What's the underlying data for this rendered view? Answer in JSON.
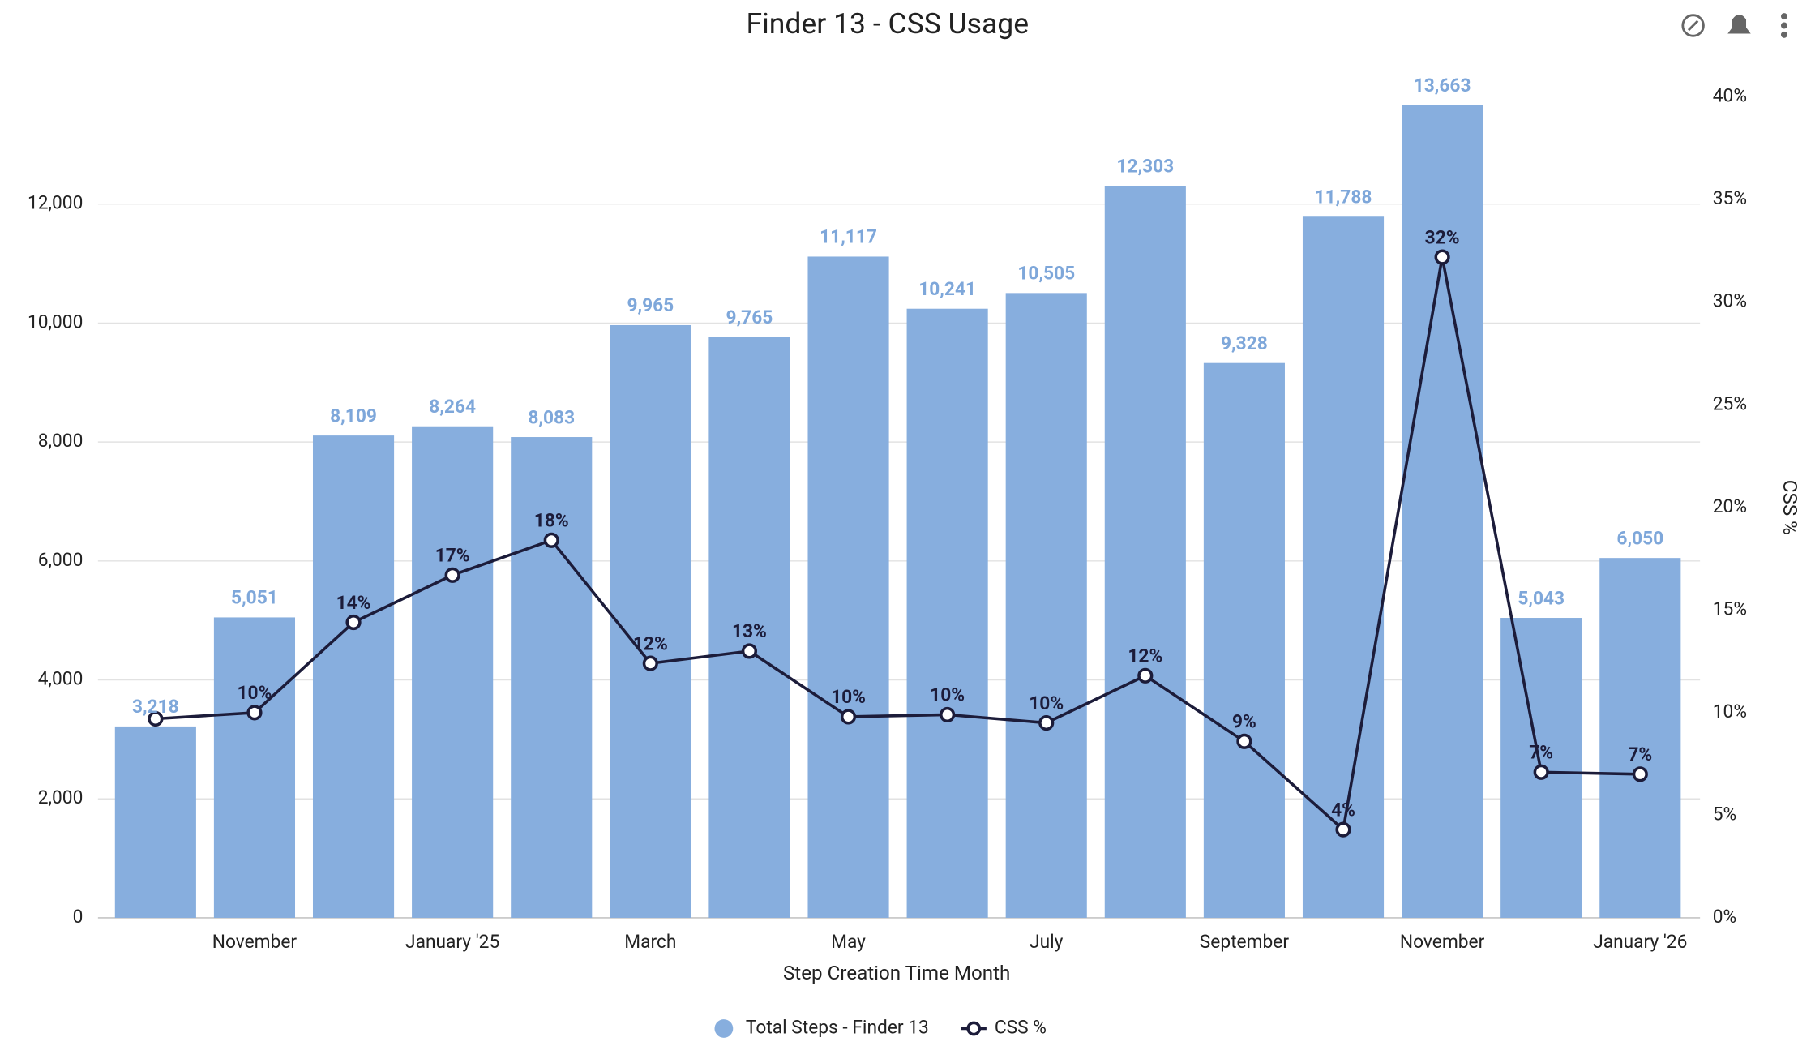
{
  "chart_data": {
    "type": "bar-line",
    "title": "Finder 13 - CSS Usage",
    "x_label": "Step Creation Time Month",
    "y2_label": "CSS %",
    "categories": [
      null,
      "November",
      null,
      "January '25",
      null,
      "March",
      null,
      "May",
      null,
      "July",
      null,
      "September",
      null,
      "November",
      null,
      "January '26"
    ],
    "series": [
      {
        "name": "Total Steps - Finder 13",
        "type": "bar",
        "color": "#87aede",
        "values": [
          3218,
          5051,
          8109,
          8264,
          8083,
          9965,
          9765,
          11117,
          10241,
          10505,
          12303,
          9328,
          11788,
          13663,
          5043,
          6050
        ],
        "value_labels": [
          "3,218",
          "5,051",
          "8,109",
          "8,264",
          "8,083",
          "9,965",
          "9,765",
          "11,117",
          "10,241",
          "10,505",
          "12,303",
          "9,328",
          "11,788",
          "13,663",
          "5,043",
          "6,050"
        ]
      },
      {
        "name": "CSS %",
        "type": "line",
        "axis": "y2",
        "color": "#1c1c3a",
        "values": [
          9.7,
          10.0,
          14.4,
          16.7,
          18.4,
          12.4,
          13.0,
          9.8,
          9.9,
          9.5,
          11.8,
          8.6,
          4.3,
          32.2,
          7.1,
          7.0
        ],
        "value_labels": [
          null,
          "10%",
          "14%",
          "17%",
          "18%",
          "12%",
          "13%",
          "10%",
          "10%",
          "10%",
          "12%",
          "9%",
          "4%",
          "32%",
          "7%",
          "7%"
        ]
      }
    ],
    "ylim": [
      0,
      13800
    ],
    "yticks": [
      0,
      {
        "value": 2000,
        "label": "2,000"
      },
      {
        "value": 4000,
        "label": "4,000"
      },
      {
        "value": 6000,
        "label": "6,000"
      },
      {
        "value": 8000,
        "label": "8,000"
      },
      {
        "value": 10000,
        "label": "10,000"
      },
      {
        "value": 12000,
        "label": "12,000"
      }
    ],
    "y2lim": [
      0,
      40
    ],
    "y2ticks": [
      {
        "value": 0,
        "label": "0%"
      },
      {
        "value": 5,
        "label": "5%"
      },
      {
        "value": 10,
        "label": "10%"
      },
      {
        "value": 15,
        "label": "15%"
      },
      {
        "value": 20,
        "label": "20%"
      },
      {
        "value": 25,
        "label": "25%"
      },
      {
        "value": 30,
        "label": "30%"
      },
      {
        "value": 35,
        "label": "35%"
      },
      {
        "value": 40,
        "label": "40%"
      }
    ],
    "grid": true
  }
}
